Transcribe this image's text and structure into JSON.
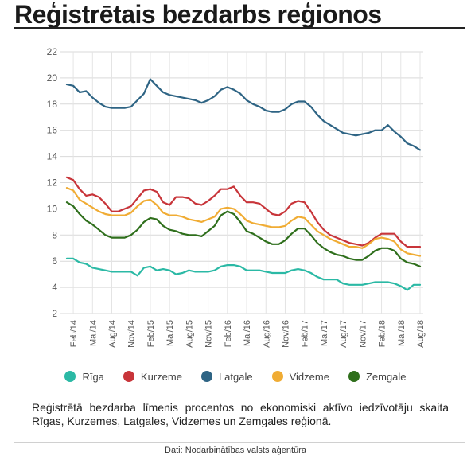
{
  "header": {
    "title": "Reģistrētais bezdarbs reģionos"
  },
  "caption": "Reģistrētā bezdarba līmenis procentos no ekonomiski aktīvo iedzīvotāju skaita Rīgas, Kurzemes, Latgales, Vidzemes un Zemgales reģionā.",
  "source": "Dati: Nodarbinātības valsts aģentūra",
  "chart_data": {
    "type": "line",
    "title": "Reģistrētais bezdarbs reģionos",
    "xlabel": "",
    "ylabel": "",
    "ylim": [
      2,
      22
    ],
    "yticks": [
      2,
      4,
      6,
      8,
      10,
      12,
      14,
      16,
      18,
      20,
      22
    ],
    "grid": true,
    "legend_position": "bottom",
    "x_tick_labels": [
      "Feb/14",
      "Mai/14",
      "Aug/14",
      "Nov/14",
      "Feb/15",
      "Mai/15",
      "Aug/15",
      "Nov/15",
      "Feb/16",
      "Mai/16",
      "Aug/16",
      "Nov/16",
      "Feb/17",
      "Mai/17",
      "Aug/17",
      "Nov/17",
      "Feb/18",
      "Mai/18",
      "Aug/18"
    ],
    "x_tick_month_index": [
      1,
      4,
      7,
      10,
      13,
      16,
      19,
      22,
      25,
      28,
      31,
      34,
      37,
      40,
      43,
      46,
      49,
      52,
      55
    ],
    "x": [
      "Jan/14",
      "Feb/14",
      "Mar/14",
      "Apr/14",
      "Mai/14",
      "Jun/14",
      "Jul/14",
      "Aug/14",
      "Sep/14",
      "Okt/14",
      "Nov/14",
      "Dec/14",
      "Jan/15",
      "Feb/15",
      "Mar/15",
      "Apr/15",
      "Mai/15",
      "Jun/15",
      "Jul/15",
      "Aug/15",
      "Sep/15",
      "Okt/15",
      "Nov/15",
      "Dec/15",
      "Jan/16",
      "Feb/16",
      "Mar/16",
      "Apr/16",
      "Mai/16",
      "Jun/16",
      "Jul/16",
      "Aug/16",
      "Sep/16",
      "Okt/16",
      "Nov/16",
      "Dec/16",
      "Jan/17",
      "Feb/17",
      "Mar/17",
      "Apr/17",
      "Mai/17",
      "Jun/17",
      "Jul/17",
      "Aug/17",
      "Sep/17",
      "Okt/17",
      "Nov/17",
      "Dec/17",
      "Jan/18",
      "Feb/18",
      "Mar/18",
      "Apr/18",
      "Mai/18",
      "Jun/18",
      "Jul/18",
      "Aug/18"
    ],
    "series": [
      {
        "name": "Rīga",
        "color": "#2bb9a5",
        "values": [
          6.2,
          6.2,
          5.9,
          5.8,
          5.5,
          5.4,
          5.3,
          5.2,
          5.2,
          5.2,
          5.2,
          4.9,
          5.5,
          5.6,
          5.3,
          5.4,
          5.3,
          5.0,
          5.1,
          5.3,
          5.2,
          5.2,
          5.2,
          5.3,
          5.6,
          5.7,
          5.7,
          5.6,
          5.3,
          5.3,
          5.3,
          5.2,
          5.1,
          5.1,
          5.1,
          5.3,
          5.4,
          5.3,
          5.1,
          4.8,
          4.6,
          4.6,
          4.6,
          4.3,
          4.2,
          4.2,
          4.2,
          4.3,
          4.4,
          4.4,
          4.4,
          4.3,
          4.1,
          3.8,
          4.2,
          4.2
        ]
      },
      {
        "name": "Kurzeme",
        "color": "#c8353a",
        "values": [
          12.4,
          12.2,
          11.5,
          11.0,
          11.1,
          10.9,
          10.4,
          9.8,
          9.8,
          10.0,
          10.2,
          10.8,
          11.4,
          11.5,
          11.3,
          10.5,
          10.3,
          10.9,
          10.9,
          10.8,
          10.4,
          10.3,
          10.6,
          11.0,
          11.5,
          11.5,
          11.7,
          11.0,
          10.5,
          10.5,
          10.4,
          10.0,
          9.6,
          9.5,
          9.8,
          10.4,
          10.6,
          10.5,
          9.8,
          9.0,
          8.4,
          8.0,
          7.8,
          7.6,
          7.4,
          7.3,
          7.2,
          7.4,
          7.8,
          8.1,
          8.1,
          8.1,
          7.5,
          7.1,
          7.1,
          7.1
        ]
      },
      {
        "name": "Latgale",
        "color": "#2e6484",
        "values": [
          19.5,
          19.4,
          18.9,
          19.0,
          18.5,
          18.1,
          17.8,
          17.7,
          17.7,
          17.7,
          17.8,
          18.3,
          18.8,
          19.9,
          19.4,
          18.9,
          18.7,
          18.6,
          18.5,
          18.4,
          18.3,
          18.1,
          18.3,
          18.6,
          19.1,
          19.3,
          19.1,
          18.8,
          18.3,
          18.0,
          17.8,
          17.5,
          17.4,
          17.4,
          17.6,
          18.0,
          18.2,
          18.2,
          17.8,
          17.2,
          16.7,
          16.4,
          16.1,
          15.8,
          15.7,
          15.6,
          15.7,
          15.8,
          16.0,
          16.0,
          16.4,
          15.9,
          15.5,
          15.0,
          14.8,
          14.5
        ]
      },
      {
        "name": "Vidzeme",
        "color": "#f0ac34",
        "values": [
          11.6,
          11.4,
          10.7,
          10.4,
          10.1,
          9.8,
          9.6,
          9.5,
          9.5,
          9.5,
          9.7,
          10.2,
          10.6,
          10.7,
          10.3,
          9.7,
          9.5,
          9.5,
          9.4,
          9.2,
          9.1,
          9.0,
          9.2,
          9.4,
          10.0,
          10.1,
          10.0,
          9.6,
          9.1,
          8.9,
          8.8,
          8.7,
          8.6,
          8.6,
          8.7,
          9.1,
          9.4,
          9.3,
          8.8,
          8.3,
          8.0,
          7.7,
          7.5,
          7.3,
          7.1,
          7.1,
          7.0,
          7.3,
          7.7,
          7.8,
          7.7,
          7.5,
          6.9,
          6.6,
          6.5,
          6.4
        ]
      },
      {
        "name": "Zemgale",
        "color": "#2f6f1c",
        "values": [
          10.5,
          10.2,
          9.6,
          9.1,
          8.8,
          8.4,
          8.0,
          7.8,
          7.8,
          7.8,
          8.0,
          8.4,
          9.0,
          9.3,
          9.2,
          8.7,
          8.4,
          8.3,
          8.1,
          8.0,
          8.0,
          7.9,
          8.3,
          8.7,
          9.5,
          9.8,
          9.6,
          9.0,
          8.3,
          8.1,
          7.8,
          7.5,
          7.3,
          7.3,
          7.6,
          8.1,
          8.5,
          8.5,
          8.0,
          7.4,
          7.0,
          6.7,
          6.5,
          6.4,
          6.2,
          6.1,
          6.1,
          6.4,
          6.8,
          7.0,
          7.0,
          6.8,
          6.2,
          5.9,
          5.8,
          5.6
        ]
      }
    ]
  }
}
